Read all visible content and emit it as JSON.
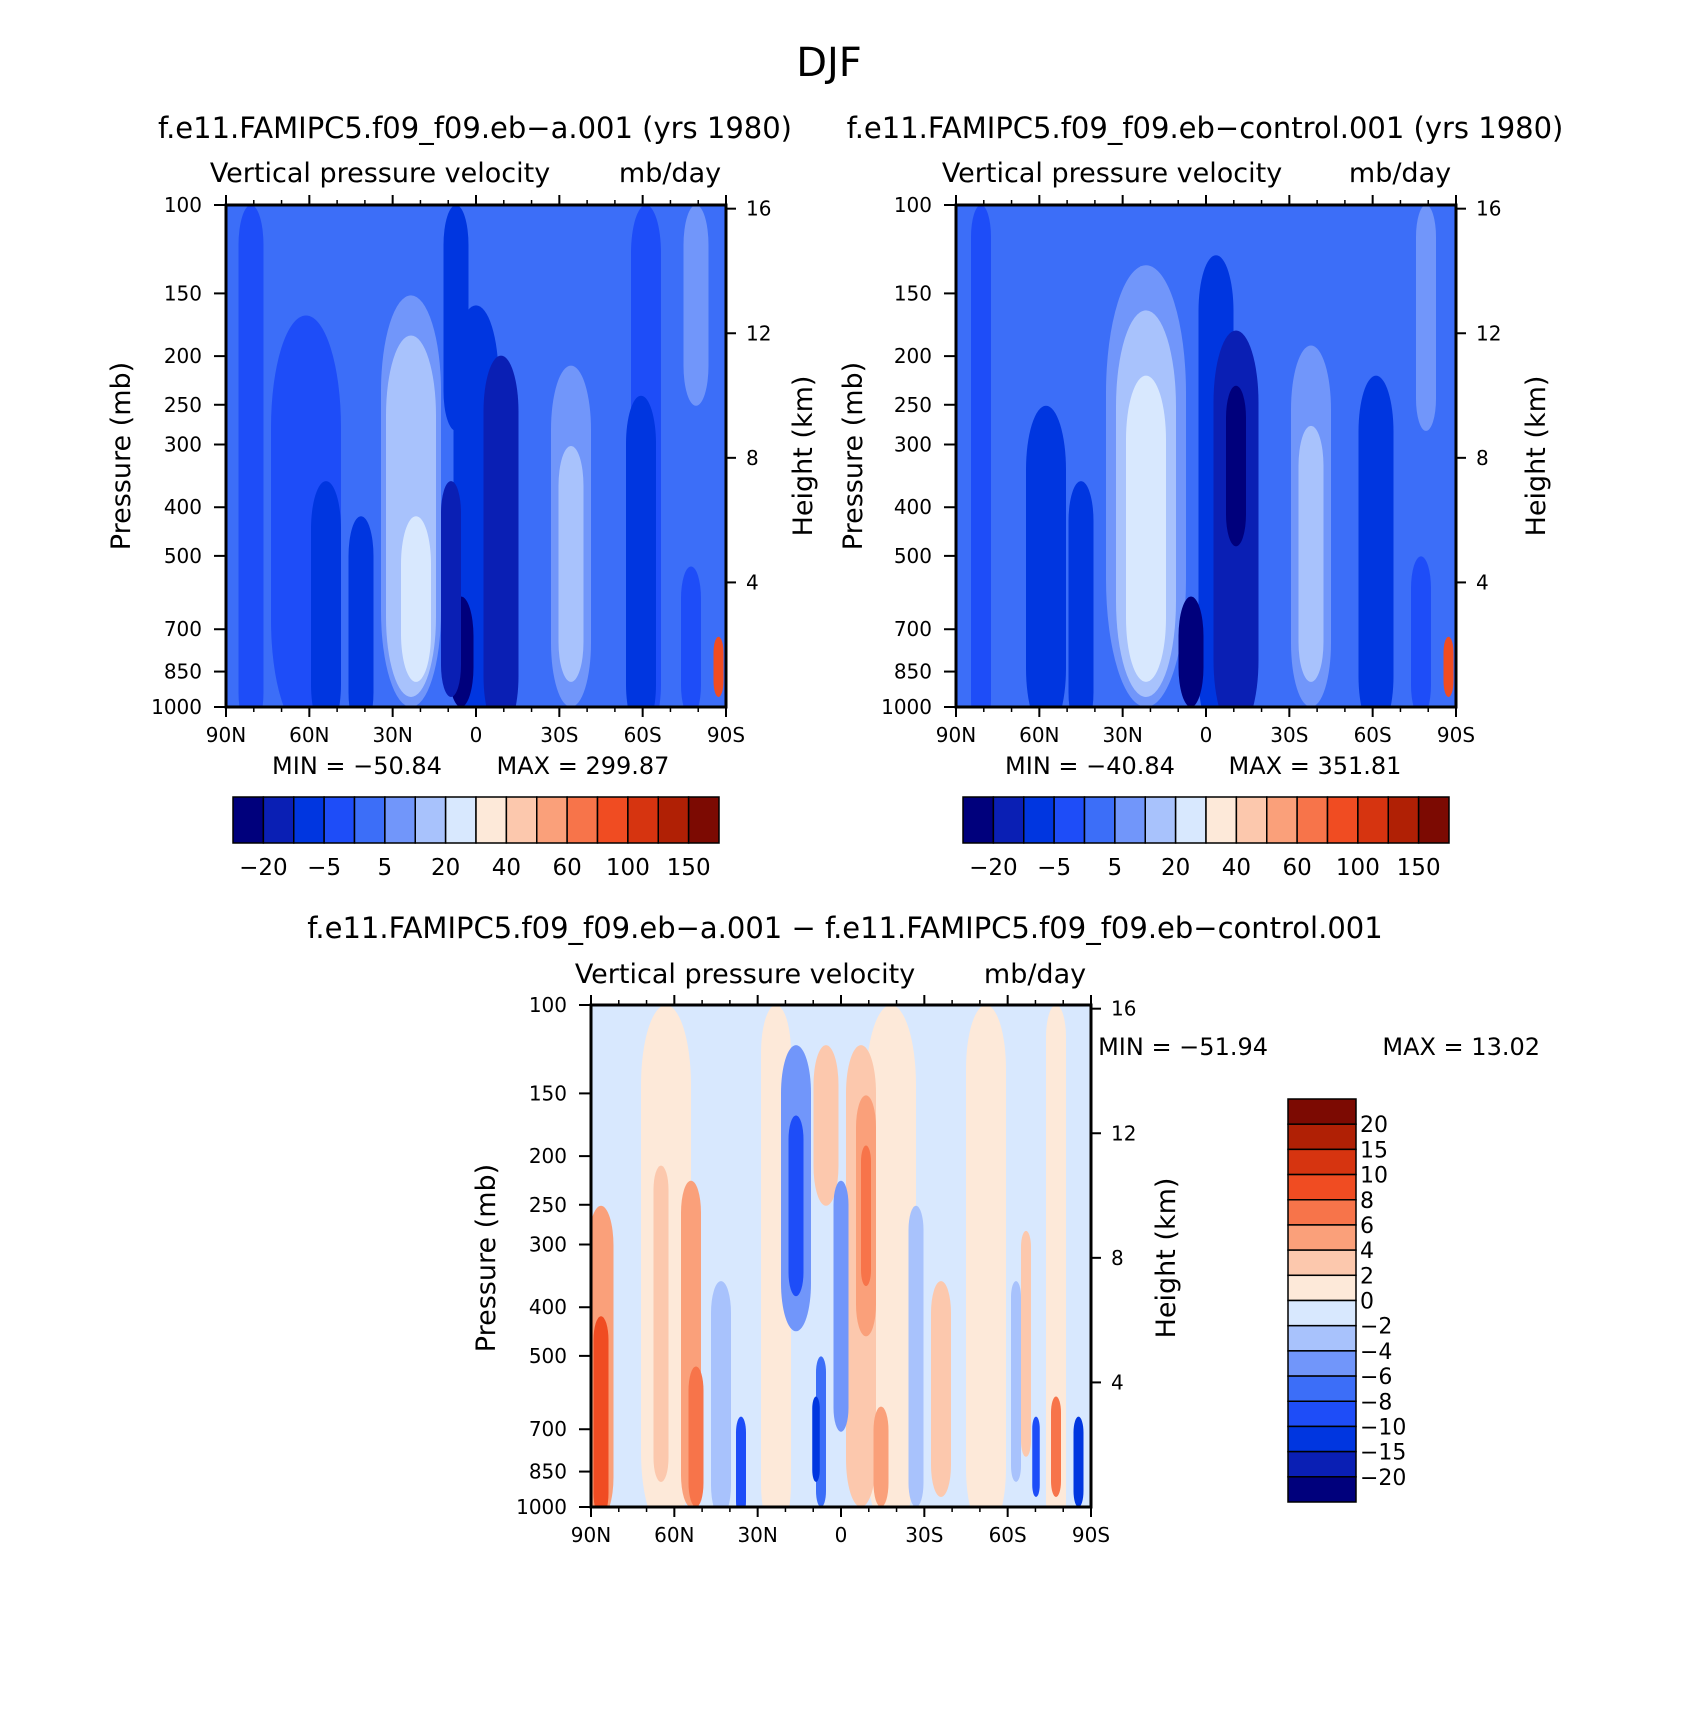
{
  "figure": {
    "season": "DJF"
  },
  "colors": {
    "blues": [
      "#00007c",
      "#0a1fb4",
      "#0036e0",
      "#1e4df8",
      "#3c6ef8",
      "#7196fa",
      "#a8c2fc",
      "#d8e8fe"
    ],
    "reds": [
      "#fde9d9",
      "#fcc8ad",
      "#faa07a",
      "#f7744a",
      "#f04c22",
      "#d63410",
      "#b02005",
      "#7c0a02"
    ]
  },
  "chart_data": [
    {
      "id": "top-left",
      "type": "heatmap",
      "title": "f.e11.FAMIPC5.f09_f09.eb−a.001 (yrs 1980)",
      "subtitle": "Vertical pressure velocity",
      "units": "mb/day",
      "xlabel": "",
      "ylabel": "Pressure (mb)",
      "ylabel_right": "Height (km)",
      "x_ticks": [
        "90N",
        "60N",
        "30N",
        "0",
        "30S",
        "60S",
        "90S"
      ],
      "y_ticks": [
        100,
        150,
        200,
        250,
        300,
        400,
        500,
        700,
        850,
        1000
      ],
      "y_ticks_right": [
        16,
        12,
        8,
        4
      ],
      "ylim": [
        1000,
        100
      ],
      "min_label": "MIN = −50.84",
      "max_label": "MAX = 299.87",
      "min": -50.84,
      "max": 299.87,
      "colorbar_labels": [
        "−20",
        "−5",
        "5",
        "20",
        "40",
        "60",
        "100",
        "150"
      ]
    },
    {
      "id": "top-right",
      "type": "heatmap",
      "title": "f.e11.FAMIPC5.f09_f09.eb−control.001 (yrs 1980)",
      "subtitle": "Vertical pressure velocity",
      "units": "mb/day",
      "xlabel": "",
      "ylabel": "Pressure (mb)",
      "ylabel_right": "Height (km)",
      "x_ticks": [
        "90N",
        "60N",
        "30N",
        "0",
        "30S",
        "60S",
        "90S"
      ],
      "y_ticks": [
        100,
        150,
        200,
        250,
        300,
        400,
        500,
        700,
        850,
        1000
      ],
      "y_ticks_right": [
        16,
        12,
        8,
        4
      ],
      "ylim": [
        1000,
        100
      ],
      "min_label": "MIN = −40.84",
      "max_label": "MAX = 351.81",
      "min": -40.84,
      "max": 351.81,
      "colorbar_labels": [
        "−20",
        "−5",
        "5",
        "20",
        "40",
        "60",
        "100",
        "150"
      ]
    },
    {
      "id": "bottom-diff",
      "type": "heatmap",
      "title": "f.e11.FAMIPC5.f09_f09.eb−a.001 − f.e11.FAMIPC5.f09_f09.eb−control.001",
      "subtitle": "Vertical pressure velocity",
      "units": "mb/day",
      "xlabel": "",
      "ylabel": "Pressure (mb)",
      "ylabel_right": "Height (km)",
      "x_ticks": [
        "90N",
        "60N",
        "30N",
        "0",
        "30S",
        "60S",
        "90S"
      ],
      "y_ticks": [
        100,
        150,
        200,
        250,
        300,
        400,
        500,
        700,
        850,
        1000
      ],
      "y_ticks_right": [
        16,
        12,
        8,
        4
      ],
      "ylim": [
        1000,
        100
      ],
      "min_label": "MIN = −51.94",
      "max_label": "MAX = 13.02",
      "min": -51.94,
      "max": 13.02,
      "colorbar_labels": [
        "20",
        "15",
        "10",
        "8",
        "6",
        "4",
        "2",
        "0",
        "−2",
        "−4",
        "−6",
        "−8",
        "−10",
        "−15",
        "−20"
      ]
    }
  ]
}
